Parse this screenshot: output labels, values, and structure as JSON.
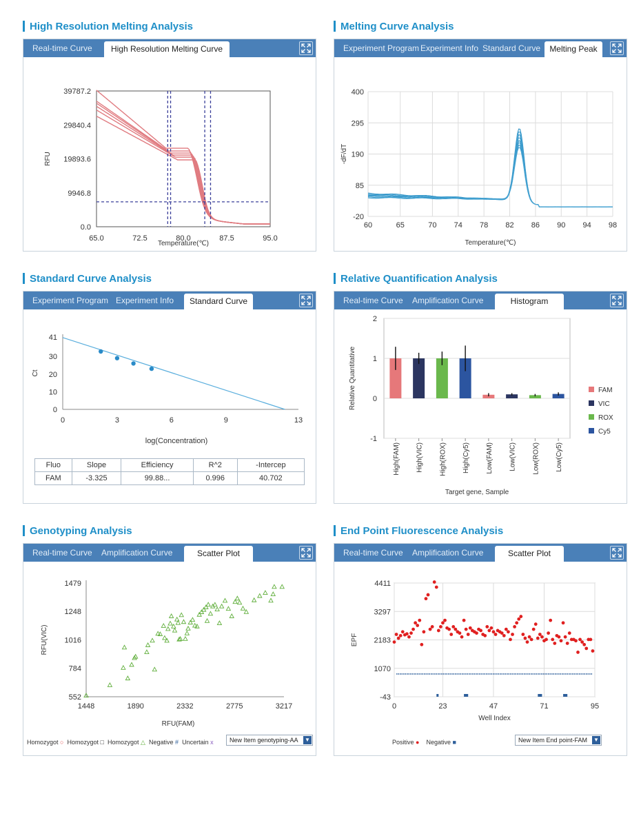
{
  "hrm": {
    "title": "High Resolution Melting Analysis",
    "tabs": [
      "Real-time Curve",
      "High Resolution Melting Curve"
    ],
    "chart_data": {
      "type": "line",
      "ylabel": "RFU",
      "xlabel": "Temperature(℃)",
      "xlim": [
        65,
        95
      ],
      "ylim": [
        0,
        39787.2
      ],
      "xticks": [
        "65.0",
        "72.5",
        "80.0",
        "87.5",
        "95.0"
      ],
      "yticks": [
        "39787.2",
        "29840.4",
        "19893.6",
        "9946.8",
        "0.0"
      ],
      "threshold": 7300,
      "vlines": [
        77.3,
        77.8,
        83.7,
        84.7
      ],
      "series_start": [
        40000,
        36800,
        36200,
        35300,
        34200,
        32400
      ],
      "series_mid": [
        23000,
        22200,
        21600,
        21000,
        20400,
        19600
      ]
    }
  },
  "mca": {
    "title": "Melting Curve Analysis",
    "tabs": [
      "Experiment Program",
      "Experiment Info",
      "Standard Curve",
      "Melting Peak"
    ],
    "chart_data": {
      "type": "line",
      "ylabel": "-dF/dT",
      "xlabel": "Temperature(℃)",
      "xlim": [
        60,
        98
      ],
      "ylim": [
        -20,
        400
      ],
      "xticks": [
        "60",
        "65",
        "70",
        "74",
        "78",
        "82",
        "86",
        "90",
        "94",
        "98"
      ],
      "yticks": [
        "400",
        "295",
        "190",
        "85",
        "-20"
      ],
      "peak_temp": 83.5,
      "peak_heights": [
        285,
        275,
        265,
        255,
        245,
        238,
        230,
        222
      ]
    }
  },
  "std": {
    "title": "Standard Curve Analysis",
    "tabs": [
      "Experiment Program",
      "Experiment Info",
      "Standard Curve"
    ],
    "chart_data": {
      "type": "scatter",
      "ylabel": "Ct",
      "xlabel": "log(Concentration)",
      "xlim": [
        0,
        13
      ],
      "ylim": [
        0,
        41
      ],
      "xticks": [
        "0",
        "3",
        "6",
        "9",
        "13"
      ],
      "yticks": [
        "41",
        "30",
        "20",
        "10",
        "0"
      ],
      "line": [
        [
          0,
          40.7
        ],
        [
          12.25,
          0
        ]
      ],
      "points": [
        [
          2.1,
          32.8
        ],
        [
          3.0,
          29.0
        ],
        [
          3.9,
          26.0
        ],
        [
          4.9,
          23.0
        ]
      ]
    },
    "table": {
      "headers": [
        "Fluo",
        "Slope",
        "Efficiency",
        "R^2",
        "-Intercep"
      ],
      "row": [
        "FAM",
        "-3.325",
        "99.88...",
        "0.996",
        "40.702"
      ]
    }
  },
  "rq": {
    "title": "Relative Quantification Analysis",
    "tabs": [
      "Real-time Curve",
      "Amplification Curve",
      "Histogram"
    ],
    "chart_data": {
      "type": "bar",
      "ylabel": "Relative Quantitative",
      "xlabel": "Target gene, Sample",
      "ylim": [
        -1,
        2
      ],
      "yticks": [
        "2",
        "1",
        "0",
        "-1"
      ],
      "categories": [
        "High(FAM)",
        "High(VIC)",
        "High(ROX)",
        "High(Cy5)",
        "Low(FAM)",
        "Low(VIC)",
        "Low(ROX)",
        "Low(Cy5)"
      ],
      "values": [
        1.0,
        1.0,
        1.0,
        1.0,
        0.09,
        0.1,
        0.08,
        0.11
      ],
      "errors": [
        0.29,
        0.14,
        0.17,
        0.32,
        0.04,
        0.03,
        0.03,
        0.04
      ],
      "colors": [
        "#e6787a",
        "#2b3560",
        "#6ab84c",
        "#2c55a0",
        "#e6787a",
        "#2b3560",
        "#6ab84c",
        "#2c55a0"
      ],
      "legend": [
        {
          "name": "FAM",
          "color": "#e6787a"
        },
        {
          "name": "VIC",
          "color": "#2b3560"
        },
        {
          "name": "ROX",
          "color": "#6ab84c"
        },
        {
          "name": "Cy5",
          "color": "#2c55a0"
        }
      ]
    }
  },
  "geno": {
    "title": "Genotyping Analysis",
    "tabs": [
      "Real-time Curve",
      "Amplification Curve",
      "Scatter Plot"
    ],
    "chart_data": {
      "type": "scatter",
      "ylabel": "RFU(VIC)",
      "xlabel": "RFU(FAM)",
      "xlim": [
        1448,
        3217
      ],
      "ylim": [
        552,
        1479
      ],
      "xticks": [
        "1448",
        "1890",
        "2332",
        "2775",
        "3217"
      ],
      "yticks": [
        "1479",
        "1248",
        "1016",
        "784",
        "552"
      ],
      "points": [
        [
          1448,
          563
        ],
        [
          1660,
          648
        ],
        [
          1780,
          789
        ],
        [
          1790,
          955
        ],
        [
          1820,
          703
        ],
        [
          1855,
          814
        ],
        [
          1880,
          869
        ],
        [
          1890,
          880
        ],
        [
          1990,
          917
        ],
        [
          2000,
          974
        ],
        [
          2040,
          1011
        ],
        [
          2060,
          775
        ],
        [
          2090,
          1067
        ],
        [
          2110,
          1063
        ],
        [
          2140,
          1131
        ],
        [
          2150,
          1032
        ],
        [
          2170,
          1010
        ],
        [
          2180,
          1106
        ],
        [
          2200,
          1150
        ],
        [
          2210,
          1210
        ],
        [
          2230,
          1126
        ],
        [
          2240,
          1093
        ],
        [
          2260,
          1183
        ],
        [
          2270,
          1155
        ],
        [
          2280,
          1020
        ],
        [
          2290,
          1024
        ],
        [
          2300,
          1219
        ],
        [
          2320,
          1163
        ],
        [
          2335,
          1025
        ],
        [
          2350,
          1070
        ],
        [
          2360,
          1109
        ],
        [
          2380,
          1158
        ],
        [
          2400,
          1180
        ],
        [
          2420,
          1133
        ],
        [
          2440,
          1126
        ],
        [
          2460,
          1222
        ],
        [
          2480,
          1243
        ],
        [
          2500,
          1262
        ],
        [
          2520,
          1283
        ],
        [
          2530,
          1171
        ],
        [
          2540,
          1304
        ],
        [
          2560,
          1230
        ],
        [
          2580,
          1290
        ],
        [
          2600,
          1303
        ],
        [
          2620,
          1265
        ],
        [
          2640,
          1153
        ],
        [
          2660,
          1290
        ],
        [
          2690,
          1336
        ],
        [
          2720,
          1270
        ],
        [
          2750,
          1210
        ],
        [
          2780,
          1326
        ],
        [
          2800,
          1354
        ],
        [
          2820,
          1320
        ],
        [
          2850,
          1272
        ],
        [
          2880,
          1244
        ],
        [
          2950,
          1340
        ],
        [
          3000,
          1375
        ],
        [
          3050,
          1400
        ],
        [
          3100,
          1337
        ],
        [
          3120,
          1389
        ],
        [
          3130,
          1449
        ],
        [
          3200,
          1449
        ]
      ],
      "legend": [
        "Homozygot",
        "Homozygot",
        "Homozygot",
        "Negative",
        "Uncertain"
      ],
      "legend_symbols": [
        "○",
        "□",
        "△",
        "#",
        "x"
      ],
      "legend_colors": [
        "#e05050",
        "#333333",
        "#5fae3a",
        "#2e5f9b",
        "#8b5fbf"
      ],
      "dropdown": "New Item genotyping-AA",
      "dropdown_arrow": "▼"
    }
  },
  "epf": {
    "title": "End Point Fluorescence Analysis",
    "tabs": [
      "Real-time Curve",
      "Amplification Curve",
      "Scatter Plot"
    ],
    "chart_data": {
      "type": "scatter",
      "ylabel": "EPF",
      "xlabel": "Well Index",
      "xlim": [
        0,
        95
      ],
      "ylim": [
        -43,
        4411
      ],
      "xticks": [
        "0",
        "23",
        "47",
        "71",
        "95"
      ],
      "yticks": [
        "4411",
        "3297",
        "2183",
        "1070",
        "-43"
      ],
      "positive": [
        2100,
        2400,
        2250,
        2350,
        2500,
        2380,
        2420,
        2300,
        2450,
        2600,
        2850,
        2750,
        2950,
        2000,
        2500,
        3800,
        3950,
        2600,
        2700,
        4450,
        4250,
        2550,
        2700,
        2850,
        2950,
        2650,
        2600,
        2400,
        2700,
        2600,
        2500,
        2450,
        2300,
        2950,
        2600,
        2400,
        2650,
        2550,
        2500,
        2450,
        2600,
        2550,
        2400,
        2350,
        2700,
        2550,
        2650,
        2500,
        2400,
        2550,
        2500,
        2450,
        2350,
        2600,
        2500,
        2200,
        2400,
        2700,
        2850,
        3000,
        3100,
        2400,
        2250,
        2100,
        2300,
        2200,
        2600,
        2800,
        2250,
        2400,
        2300,
        2150,
        2200,
        2450,
        2950,
        2200,
        2050,
        2350,
        2300,
        2150,
        2850,
        2300,
        2050,
        2450,
        2200,
        2200,
        2150,
        1700,
        2200,
        2100,
        2000,
        1850,
        2200,
        2200,
        1750
      ],
      "negative_level": 850,
      "negative_marks": [
        [
          20,
          21
        ],
        [
          33,
          35
        ],
        [
          68,
          70
        ],
        [
          80,
          82
        ]
      ],
      "legend": [
        {
          "name": "Positive",
          "symbol": "●",
          "color": "#e02020"
        },
        {
          "name": "Negative",
          "symbol": "■",
          "color": "#2e5f9b"
        }
      ],
      "dropdown": "New Item End point-FAM",
      "dropdown_arrow": "▼"
    }
  }
}
